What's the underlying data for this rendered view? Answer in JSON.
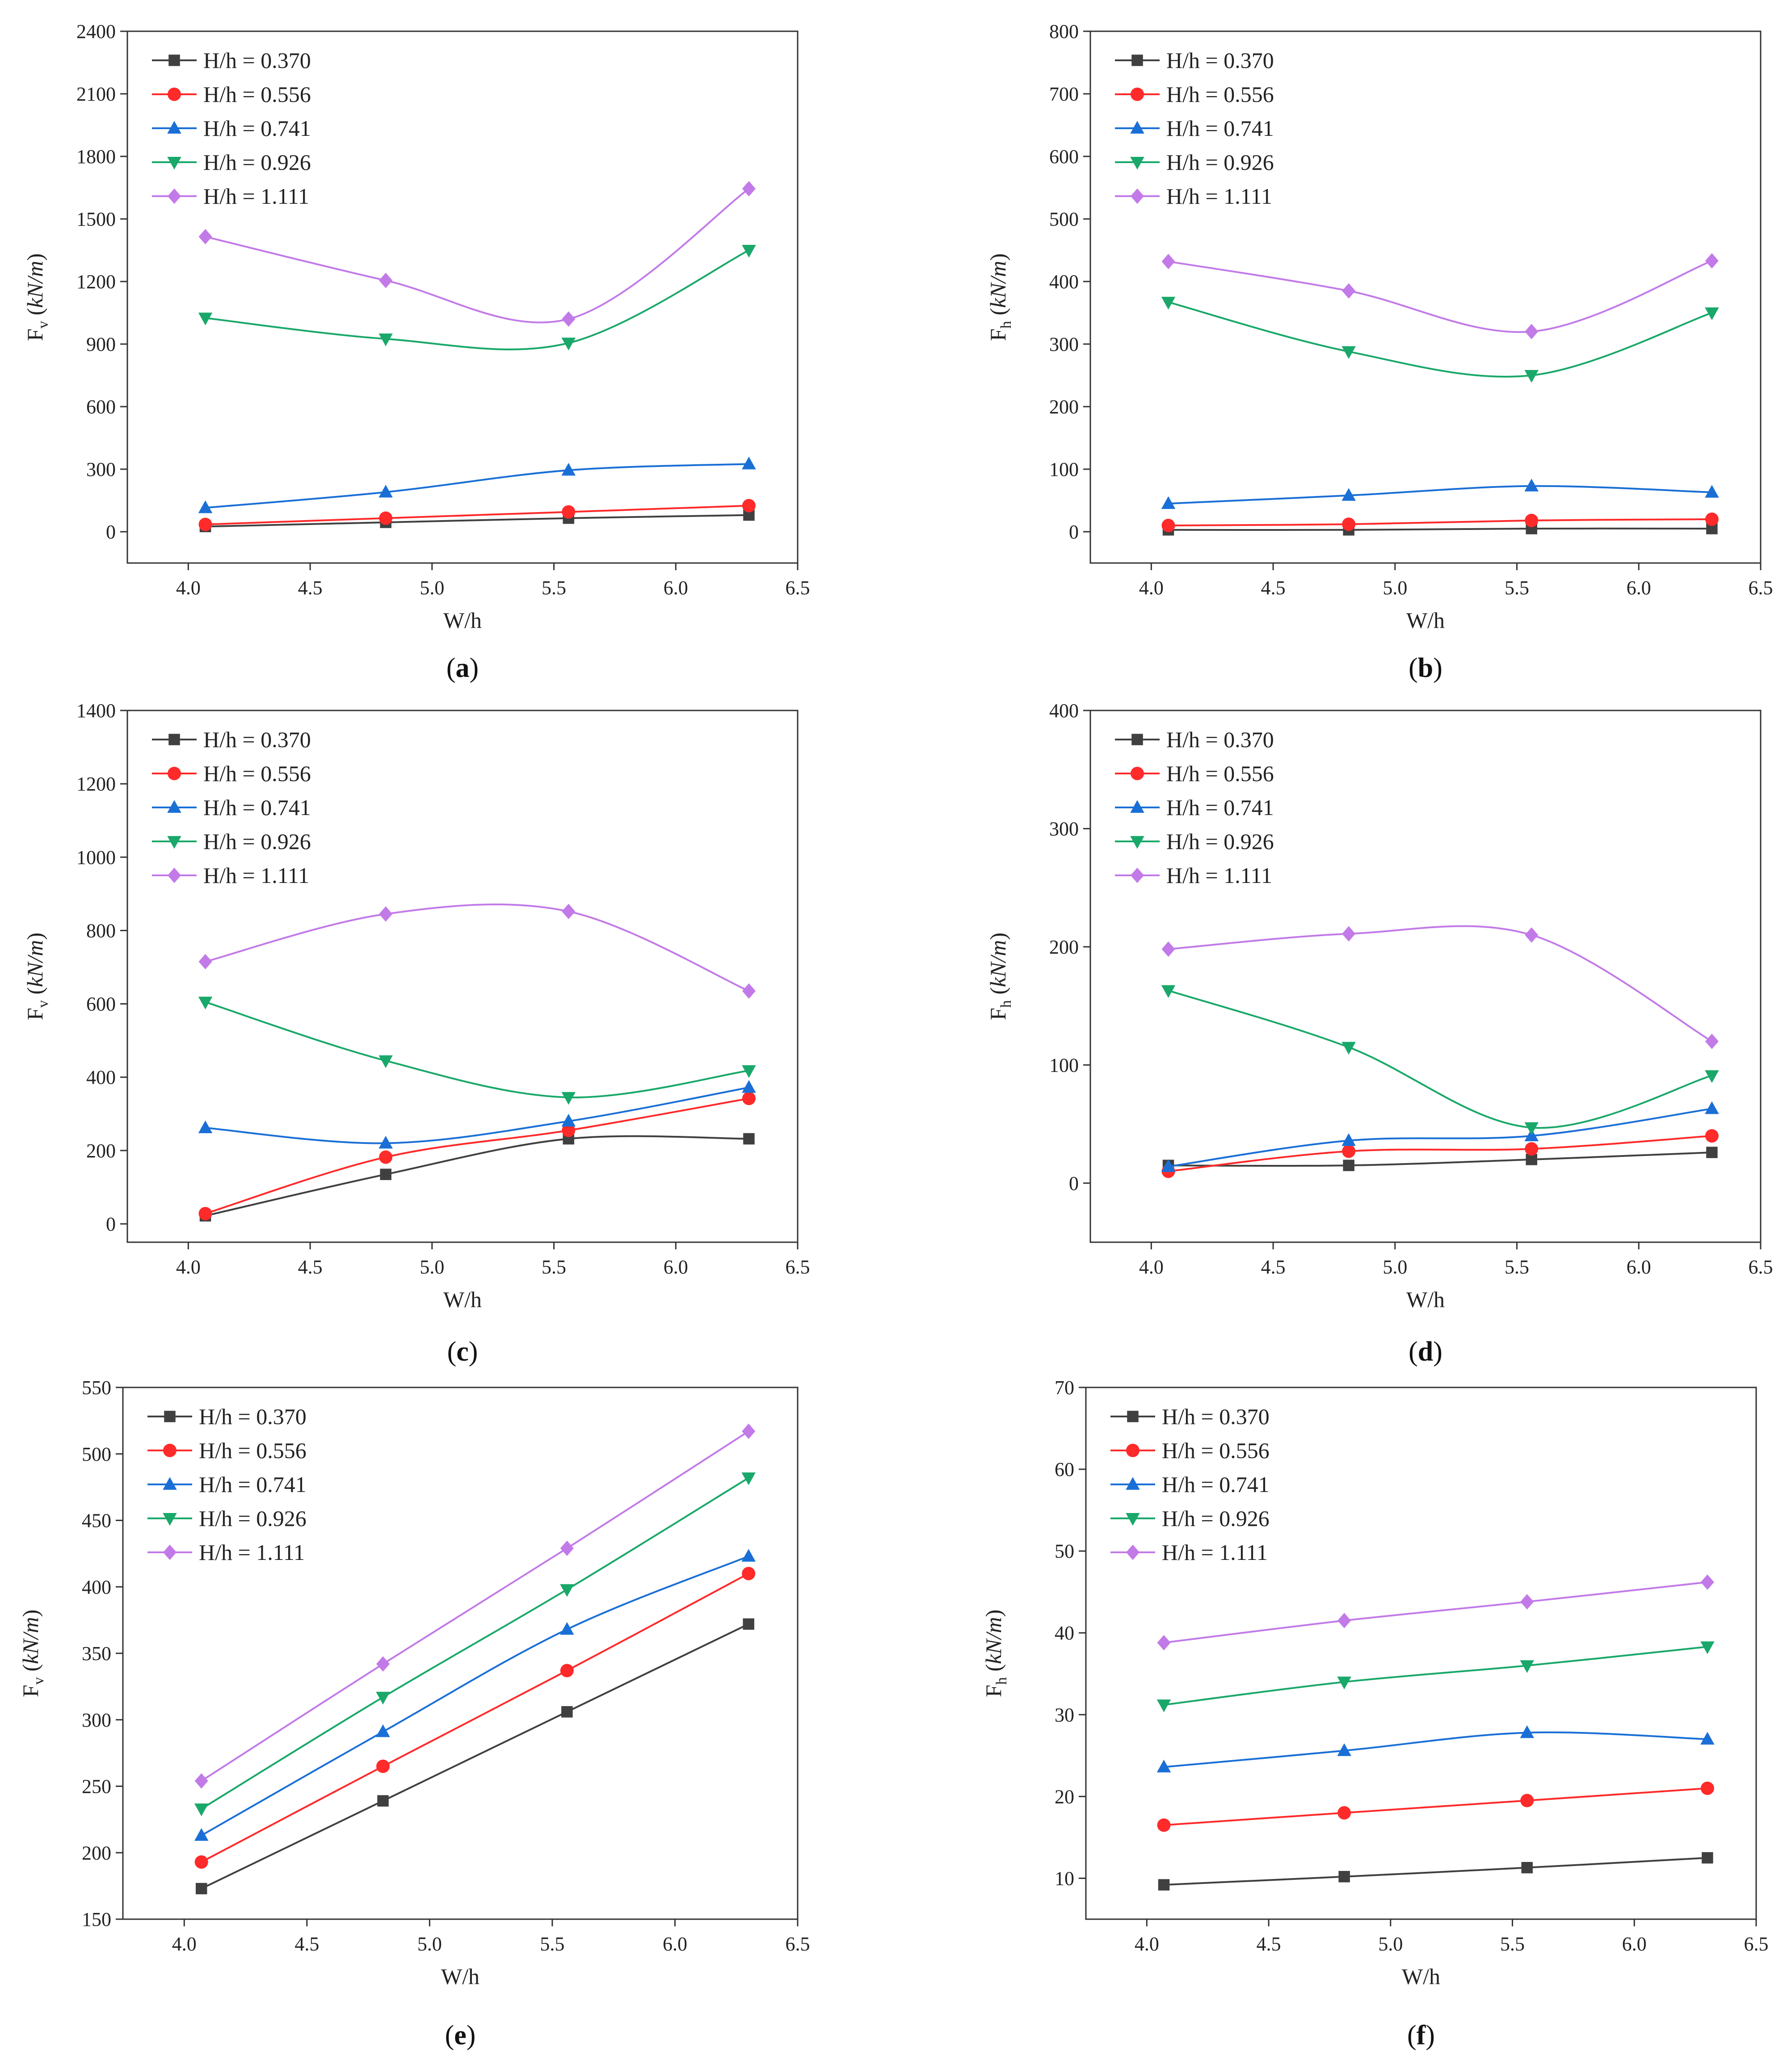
{
  "figure": {
    "series_names": [
      "H/h = 0.370",
      "H/h = 0.556",
      "H/h = 0.741",
      "H/h = 0.926",
      "H/h = 1.111"
    ],
    "series_colors": [
      "#404040",
      "#ff2a2a",
      "#1a6fd6",
      "#1aa86a",
      "#c27ae8"
    ],
    "series_markers": [
      "square",
      "circle",
      "triangle-up",
      "triangle-down",
      "diamond"
    ]
  },
  "chart_data": [
    {
      "id": "a",
      "type": "line",
      "panel_label": "(a)",
      "panel_letter": "a",
      "xlabel": "W/h",
      "ylabel_main": "F",
      "ylabel_sub": "v",
      "ylabel_unit": "kN/m",
      "xlim": [
        3.75,
        6.5
      ],
      "ylim": [
        -150,
        2400
      ],
      "xticks": [
        4.0,
        4.5,
        5.0,
        5.5,
        6.0,
        6.5
      ],
      "xtick_labels": [
        "4.0",
        "4.5",
        "5.0",
        "5.5",
        "6.0",
        "6.5"
      ],
      "yticks": [
        0,
        300,
        600,
        900,
        1200,
        1500,
        1800,
        2100,
        2400
      ],
      "ytick_labels": [
        "0",
        "300",
        "600",
        "900",
        "1200",
        "1500",
        "1800",
        "2100",
        "2400"
      ],
      "legend_position": "top-left",
      "x": [
        4.07,
        4.81,
        5.56,
        6.3
      ],
      "series": [
        {
          "name": "H/h = 0.370",
          "values": [
            25,
            45,
            65,
            80
          ]
        },
        {
          "name": "H/h = 0.556",
          "values": [
            35,
            65,
            95,
            125
          ]
        },
        {
          "name": "H/h = 0.741",
          "values": [
            115,
            190,
            295,
            325
          ]
        },
        {
          "name": "H/h = 0.926",
          "values": [
            1025,
            925,
            905,
            1350
          ]
        },
        {
          "name": "H/h = 1.111",
          "values": [
            1415,
            1205,
            1020,
            1645
          ]
        }
      ]
    },
    {
      "id": "b",
      "type": "line",
      "panel_label": "(b)",
      "panel_letter": "b",
      "xlabel": "W/h",
      "ylabel_main": "F",
      "ylabel_sub": "h",
      "ylabel_unit": "kN/m",
      "xlim": [
        3.75,
        6.5
      ],
      "ylim": [
        -50,
        800
      ],
      "xticks": [
        4.0,
        4.5,
        5.0,
        5.5,
        6.0,
        6.5
      ],
      "xtick_labels": [
        "4.0",
        "4.5",
        "5.0",
        "5.5",
        "6.0",
        "6.5"
      ],
      "yticks": [
        0,
        100,
        200,
        300,
        400,
        500,
        600,
        700,
        800
      ],
      "ytick_labels": [
        "0",
        "100",
        "200",
        "300",
        "400",
        "500",
        "600",
        "700",
        "800"
      ],
      "legend_position": "top-left",
      "x": [
        4.07,
        4.81,
        5.56,
        6.3
      ],
      "series": [
        {
          "name": "H/h = 0.370",
          "values": [
            3,
            3,
            5,
            5
          ]
        },
        {
          "name": "H/h = 0.556",
          "values": [
            10,
            12,
            18,
            20
          ]
        },
        {
          "name": "H/h = 0.741",
          "values": [
            45,
            58,
            73,
            63
          ]
        },
        {
          "name": "H/h = 0.926",
          "values": [
            367,
            288,
            250,
            350
          ]
        },
        {
          "name": "H/h = 1.111",
          "values": [
            432,
            385,
            320,
            433
          ]
        }
      ]
    },
    {
      "id": "c",
      "type": "line",
      "panel_label": "(c)",
      "panel_letter": "c",
      "xlabel": "W/h",
      "ylabel_main": "F",
      "ylabel_sub": "v",
      "ylabel_unit": "kN/m",
      "xlim": [
        3.75,
        6.5
      ],
      "ylim": [
        -50,
        1400
      ],
      "xticks": [
        4.0,
        4.5,
        5.0,
        5.5,
        6.0,
        6.5
      ],
      "xtick_labels": [
        "4.0",
        "4.5",
        "5.0",
        "5.5",
        "6.0",
        "6.5"
      ],
      "yticks": [
        0,
        200,
        400,
        600,
        800,
        1000,
        1200,
        1400
      ],
      "ytick_labels": [
        "0",
        "200",
        "400",
        "600",
        "800",
        "1000",
        "1200",
        "1400"
      ],
      "legend_position": "top-left",
      "x": [
        4.07,
        4.81,
        5.56,
        6.3
      ],
      "series": [
        {
          "name": "H/h = 0.370",
          "values": [
            22,
            135,
            232,
            232
          ]
        },
        {
          "name": "H/h = 0.556",
          "values": [
            28,
            182,
            255,
            342
          ]
        },
        {
          "name": "H/h = 0.741",
          "values": [
            262,
            220,
            280,
            372
          ]
        },
        {
          "name": "H/h = 0.926",
          "values": [
            605,
            445,
            345,
            418
          ]
        },
        {
          "name": "H/h = 1.111",
          "values": [
            715,
            845,
            852,
            635
          ]
        }
      ]
    },
    {
      "id": "d",
      "type": "line",
      "panel_label": "(d)",
      "panel_letter": "d",
      "xlabel": "W/h",
      "ylabel_main": "F",
      "ylabel_sub": "h",
      "ylabel_unit": "kN/m",
      "xlim": [
        3.75,
        6.5
      ],
      "ylim": [
        -50,
        400
      ],
      "xticks": [
        4.0,
        4.5,
        5.0,
        5.5,
        6.0,
        6.5
      ],
      "xtick_labels": [
        "4.0",
        "4.5",
        "5.0",
        "5.5",
        "6.0",
        "6.5"
      ],
      "yticks": [
        0,
        100,
        200,
        300,
        400
      ],
      "ytick_labels": [
        "0",
        "100",
        "200",
        "300",
        "400"
      ],
      "legend_position": "top-left",
      "x": [
        4.07,
        4.81,
        5.56,
        6.3
      ],
      "series": [
        {
          "name": "H/h = 0.370",
          "values": [
            15,
            15,
            20,
            26
          ]
        },
        {
          "name": "H/h = 0.556",
          "values": [
            10,
            27,
            29,
            40
          ]
        },
        {
          "name": "H/h = 0.741",
          "values": [
            14,
            36,
            40,
            63
          ]
        },
        {
          "name": "H/h = 0.926",
          "values": [
            163,
            115,
            47,
            91
          ]
        },
        {
          "name": "H/h = 1.111",
          "values": [
            198,
            211,
            210,
            120
          ]
        }
      ]
    },
    {
      "id": "e",
      "type": "line",
      "panel_label": "(e)",
      "panel_letter": "e",
      "xlabel": "W/h",
      "ylabel_main": "F",
      "ylabel_sub": "v",
      "ylabel_unit": "kN/m",
      "xlim": [
        3.75,
        6.5
      ],
      "ylim": [
        150,
        550
      ],
      "xticks": [
        4.0,
        4.5,
        5.0,
        5.5,
        6.0,
        6.5
      ],
      "xtick_labels": [
        "4.0",
        "4.5",
        "5.0",
        "5.5",
        "6.0",
        "6.5"
      ],
      "yticks": [
        150,
        200,
        250,
        300,
        350,
        400,
        450,
        500,
        550
      ],
      "ytick_labels": [
        "150",
        "200",
        "250",
        "300",
        "350",
        "400",
        "450",
        "500",
        "550"
      ],
      "legend_position": "top-left",
      "x": [
        4.07,
        4.81,
        5.56,
        6.3
      ],
      "series": [
        {
          "name": "H/h = 0.370",
          "values": [
            173,
            239,
            306,
            372
          ]
        },
        {
          "name": "H/h = 0.556",
          "values": [
            193,
            265,
            337,
            410
          ]
        },
        {
          "name": "H/h = 0.741",
          "values": [
            213,
            291,
            368,
            423
          ]
        },
        {
          "name": "H/h = 0.926",
          "values": [
            233,
            317,
            398,
            482
          ]
        },
        {
          "name": "H/h = 1.111",
          "values": [
            254,
            342,
            429,
            517
          ]
        }
      ]
    },
    {
      "id": "f",
      "type": "line",
      "panel_label": "(f)",
      "panel_letter": "f",
      "xlabel": "W/h",
      "ylabel_main": "F",
      "ylabel_sub": "h",
      "ylabel_unit": "kN/m",
      "xlim": [
        3.75,
        6.5
      ],
      "ylim": [
        5,
        70
      ],
      "xticks": [
        4.0,
        4.5,
        5.0,
        5.5,
        6.0,
        6.5
      ],
      "xtick_labels": [
        "4.0",
        "4.5",
        "5.0",
        "5.5",
        "6.0",
        "6.5"
      ],
      "yticks": [
        10,
        20,
        30,
        40,
        50,
        60,
        70
      ],
      "ytick_labels": [
        "10",
        "20",
        "30",
        "40",
        "50",
        "60",
        "70"
      ],
      "legend_position": "top-left",
      "x": [
        4.07,
        4.81,
        5.56,
        6.3
      ],
      "series": [
        {
          "name": "H/h = 0.370",
          "values": [
            9.2,
            10.2,
            11.3,
            12.5
          ]
        },
        {
          "name": "H/h = 0.556",
          "values": [
            16.5,
            18.0,
            19.5,
            21.0
          ]
        },
        {
          "name": "H/h = 0.741",
          "values": [
            23.6,
            25.6,
            27.8,
            27.0
          ]
        },
        {
          "name": "H/h = 0.926",
          "values": [
            31.2,
            34.0,
            36.0,
            38.3
          ]
        },
        {
          "name": "H/h = 1.111",
          "values": [
            38.8,
            41.5,
            43.8,
            46.2
          ]
        }
      ]
    }
  ]
}
